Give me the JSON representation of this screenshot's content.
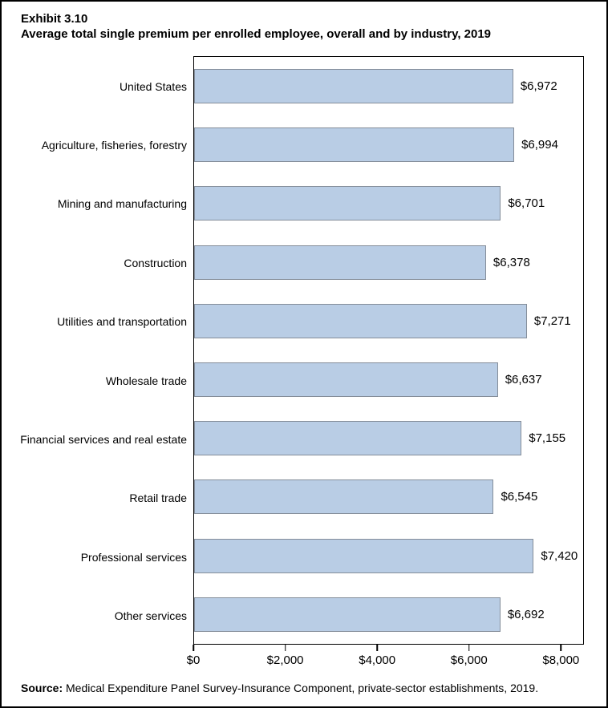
{
  "title": {
    "exhibit": "Exhibit 3.10",
    "subtitle": "Average total single premium per enrolled employee, overall and by industry, 2019"
  },
  "chart_data": {
    "type": "bar",
    "orientation": "horizontal",
    "title": "Average total single premium per enrolled employee, overall and by industry, 2019",
    "categories": [
      "United States",
      "Agriculture, fisheries, forestry",
      "Mining and manufacturing",
      "Construction",
      "Utilities and transportation",
      "Wholesale trade",
      "Financial services and real estate",
      "Retail trade",
      "Professional services",
      "Other services"
    ],
    "values": [
      6972,
      6994,
      6701,
      6378,
      7271,
      6637,
      7155,
      6545,
      7420,
      6692
    ],
    "value_labels": [
      "$6,972",
      "$6,994",
      "$6,701",
      "$6,378",
      "$7,271",
      "$6,637",
      "$7,155",
      "$6,545",
      "$7,420",
      "$6,692"
    ],
    "xlabel": "",
    "ylabel": "",
    "xlim": [
      0,
      8500
    ],
    "x_ticks": [
      0,
      2000,
      4000,
      6000,
      8000
    ],
    "x_tick_labels": [
      "$0",
      "$2,000",
      "$4,000",
      "$6,000",
      "$8,000"
    ],
    "grid": false,
    "legend": false,
    "bar_fill_color": "#b9cde5",
    "bar_border_color": "#848d99",
    "frame_color": "#000000"
  },
  "source": {
    "label": "Source:",
    "text": " Medical Expenditure Panel Survey-Insurance Component, private-sector establishments, 2019."
  }
}
